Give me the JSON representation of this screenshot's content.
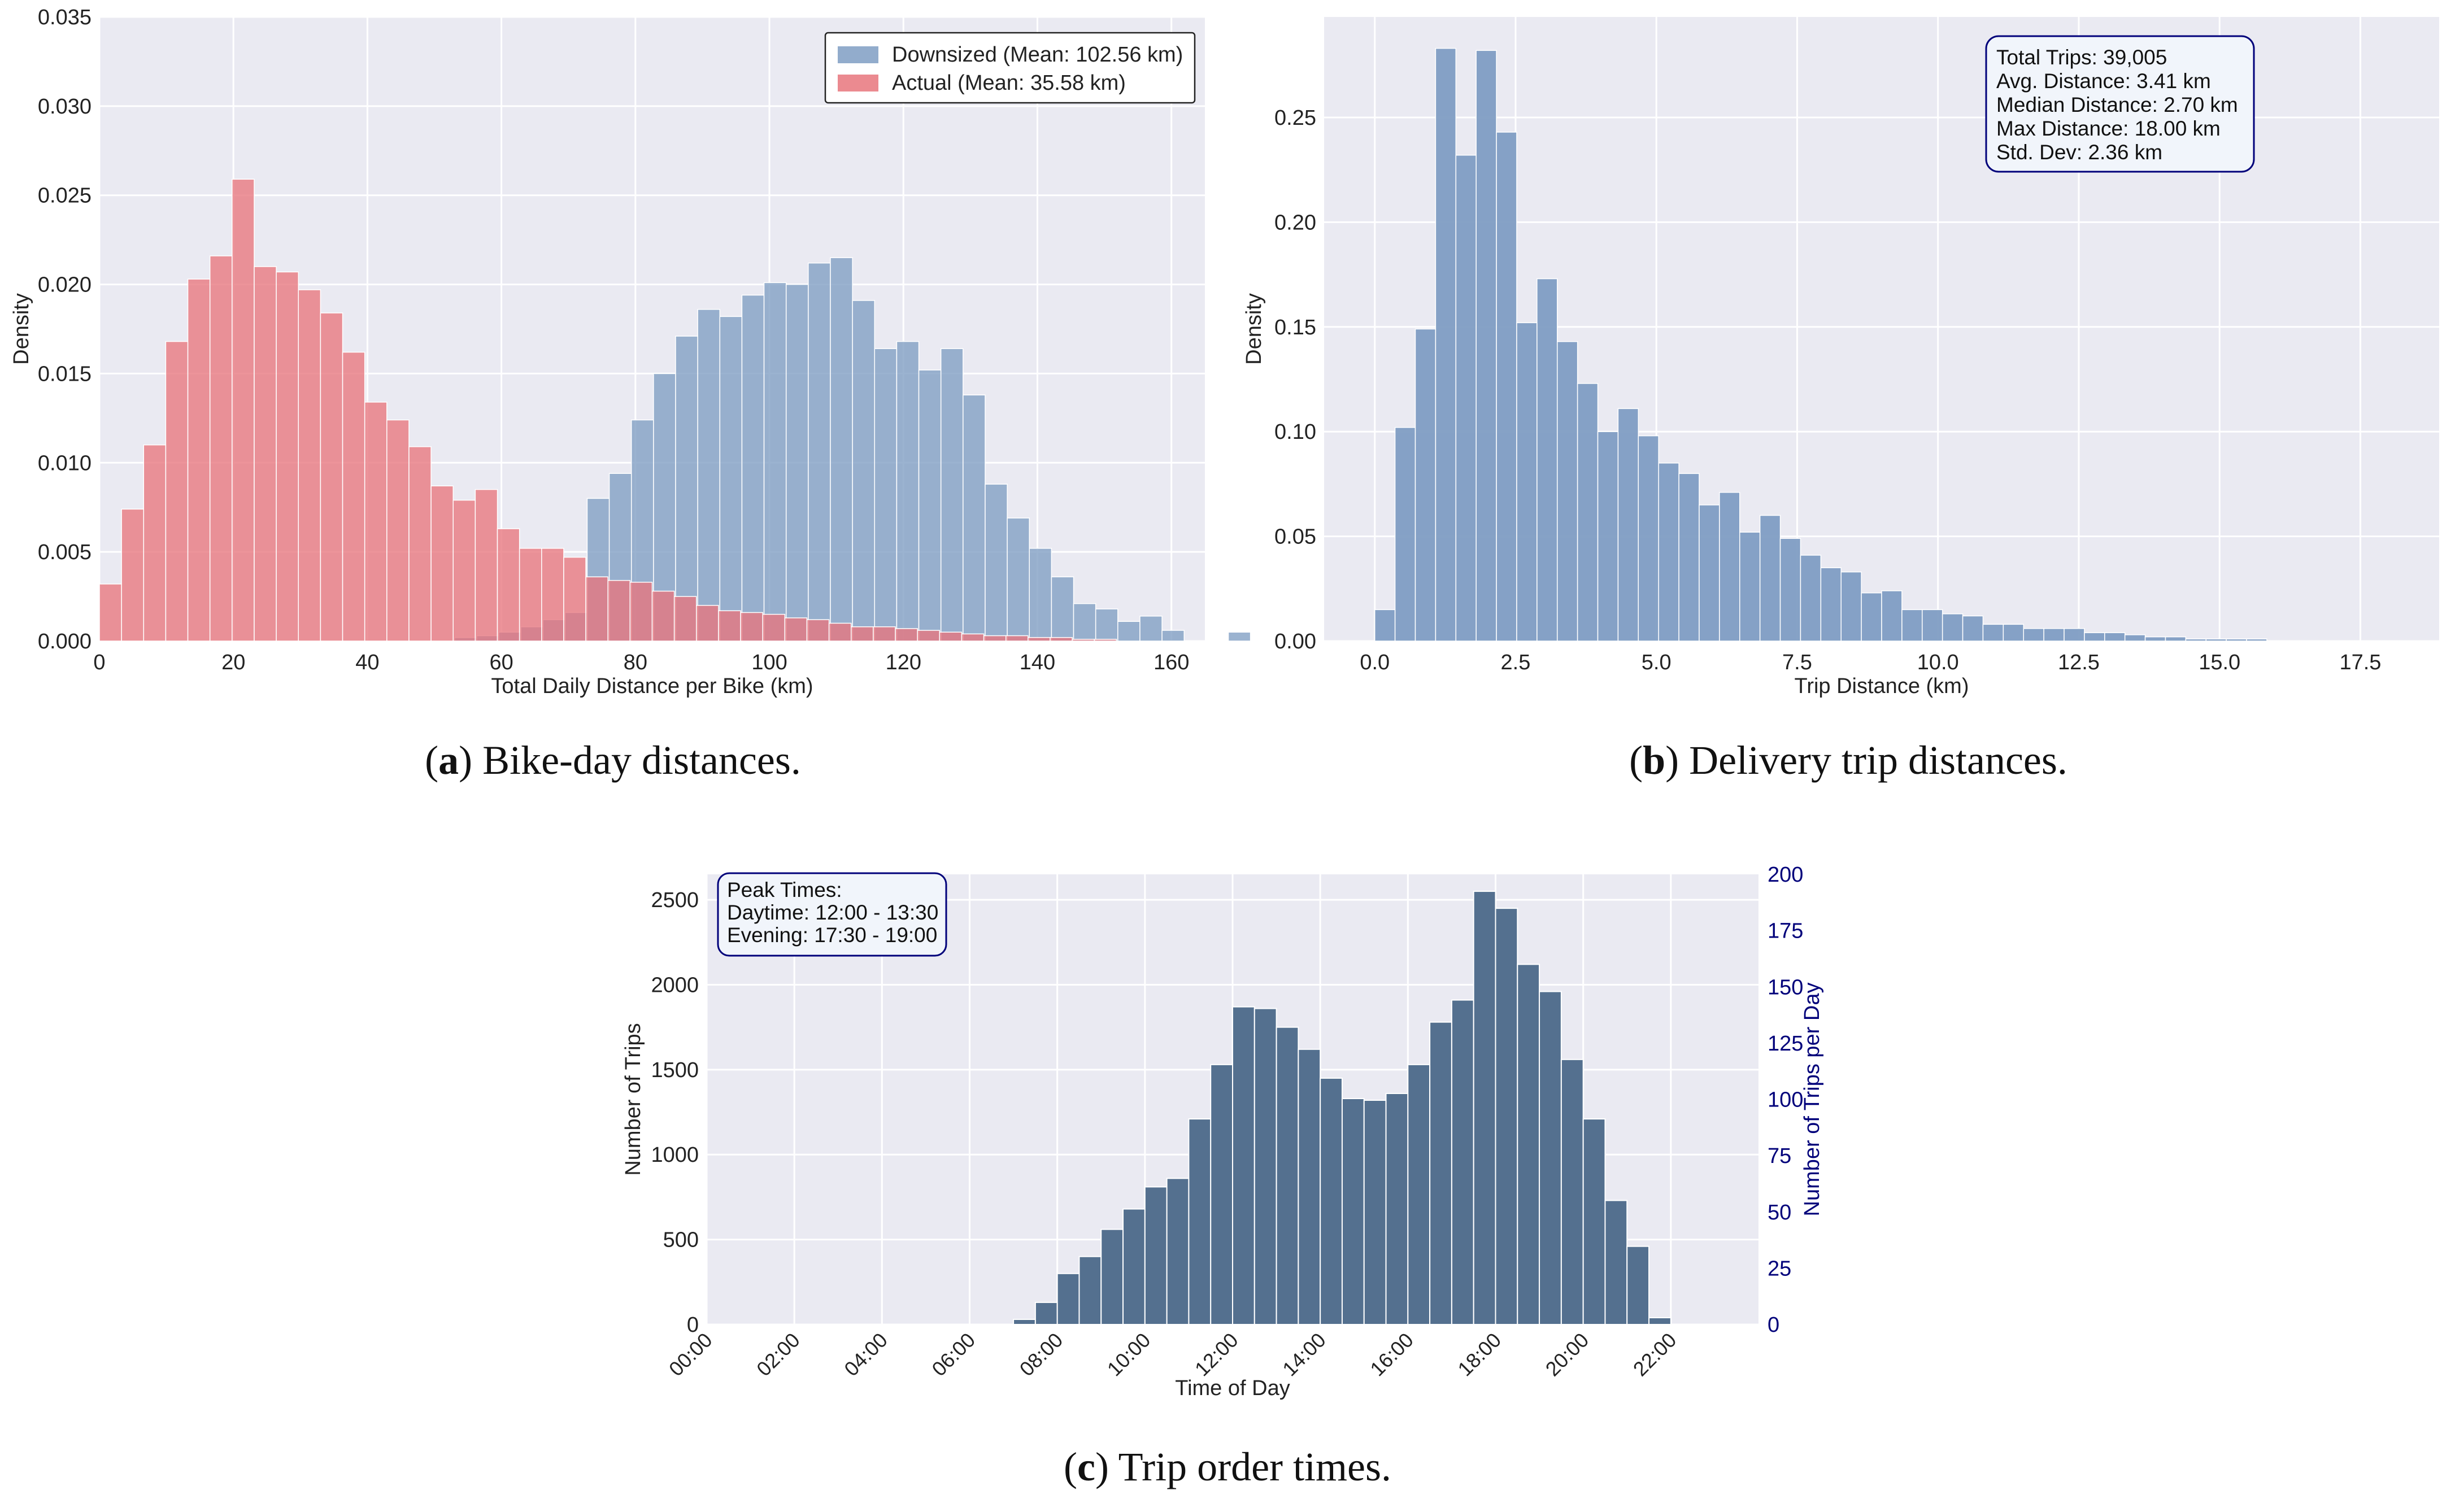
{
  "colors": {
    "plot_bg": "#eaeaf2",
    "grid": "#ffffff",
    "blue_bar": "#7f9dc3",
    "red_bar": "#e8767d",
    "dark_bar": "#54708f",
    "navy": "#00007a",
    "text": "#222222",
    "box_fill": "#f1f5fb"
  },
  "captions": {
    "a": {
      "letter": "a",
      "text": "Bike-day distances."
    },
    "b": {
      "letter": "b",
      "text": "Delivery trip distances."
    },
    "c": {
      "letter": "c",
      "text": "Trip order times."
    }
  },
  "chart_data": [
    {
      "id": "a",
      "type": "bar",
      "title": "",
      "xlabel": "Total Daily Distance per Bike (km)",
      "ylabel": "Density",
      "xlim": [
        0,
        165
      ],
      "ylim": [
        0,
        0.035
      ],
      "grid": true,
      "bin_width": 3.3,
      "xticks": [
        "0",
        "20",
        "40",
        "60",
        "80",
        "100",
        "120",
        "140",
        "160"
      ],
      "yticks": [
        "0.000",
        "0.005",
        "0.010",
        "0.015",
        "0.020",
        "0.025",
        "0.030",
        "0.035"
      ],
      "legend_position": "top-right",
      "series": [
        {
          "name": "Downsized (Mean: 102.56 km)",
          "color_key": "blue_bar",
          "bin_start": 53.0,
          "values": [
            0.0002,
            0.0003,
            0.0005,
            0.0008,
            0.0012,
            0.0016,
            0.008,
            0.0094,
            0.0124,
            0.015,
            0.0171,
            0.0186,
            0.0182,
            0.0194,
            0.0201,
            0.02,
            0.0212,
            0.0215,
            0.0191,
            0.0164,
            0.0168,
            0.0152,
            0.0164,
            0.0138,
            0.0088,
            0.0069,
            0.0052,
            0.0036,
            0.0021,
            0.0018,
            0.0011,
            0.0014,
            0.0006,
            0.0,
            0.0,
            0.0005
          ]
        },
        {
          "name": "Actual (Mean: 35.58 km)",
          "color_key": "red_bar",
          "bin_start": 0.0,
          "values": [
            0.0032,
            0.0074,
            0.011,
            0.0168,
            0.0203,
            0.0216,
            0.0259,
            0.021,
            0.0207,
            0.0197,
            0.0184,
            0.0162,
            0.0134,
            0.0124,
            0.0109,
            0.0087,
            0.0079,
            0.0085,
            0.0063,
            0.0052,
            0.0052,
            0.0047,
            0.0036,
            0.0034,
            0.0033,
            0.0028,
            0.0025,
            0.002,
            0.0017,
            0.0016,
            0.0015,
            0.0013,
            0.0012,
            0.001,
            0.0008,
            0.0008,
            0.0007,
            0.0006,
            0.0005,
            0.0004,
            0.0003,
            0.0003,
            0.0002,
            0.0002,
            0.0001,
            0.0001
          ]
        }
      ]
    },
    {
      "id": "b",
      "type": "bar",
      "title": "",
      "xlabel": "Trip Distance (km)",
      "ylabel": "Density",
      "xlim": [
        -0.9,
        18.9
      ],
      "ylim": [
        0,
        0.298
      ],
      "grid": true,
      "bin_width": 0.36,
      "xticks": [
        "0.0",
        "2.5",
        "5.0",
        "7.5",
        "10.0",
        "12.5",
        "15.0",
        "17.5"
      ],
      "yticks": [
        "0.00",
        "0.05",
        "0.10",
        "0.15",
        "0.20",
        "0.25"
      ],
      "series": [
        {
          "name": "Trips",
          "color_key": "blue_bar",
          "bin_start": 0.0,
          "values": [
            0.015,
            0.102,
            0.149,
            0.283,
            0.232,
            0.282,
            0.243,
            0.152,
            0.173,
            0.143,
            0.123,
            0.1,
            0.111,
            0.098,
            0.085,
            0.08,
            0.065,
            0.071,
            0.052,
            0.06,
            0.049,
            0.041,
            0.035,
            0.033,
            0.023,
            0.024,
            0.015,
            0.015,
            0.013,
            0.012,
            0.008,
            0.008,
            0.006,
            0.006,
            0.006,
            0.004,
            0.004,
            0.003,
            0.002,
            0.002,
            0.001,
            0.001,
            0.001,
            0.001,
            0.0,
            0.0,
            0.0,
            0.0,
            0.0,
            0.0
          ]
        }
      ],
      "stats_box": [
        "Total Trips: 39,005",
        "Avg. Distance: 3.41 km",
        "Median Distance: 2.70 km",
        "Max Distance: 18.00 km",
        "Std. Dev: 2.36 km"
      ]
    },
    {
      "id": "c",
      "type": "bar",
      "title": "",
      "xlabel": "Time of Day",
      "ylabel": "Number of Trips",
      "ylabel_right": "Number of Trips per Day",
      "xlim": [
        0,
        24
      ],
      "ylim": [
        0,
        2650
      ],
      "ylim_right": [
        0,
        200
      ],
      "grid": true,
      "bin_width": 0.5,
      "xticks": [
        "00:00",
        "02:00",
        "04:00",
        "06:00",
        "08:00",
        "10:00",
        "12:00",
        "14:00",
        "16:00",
        "18:00",
        "20:00",
        "22:00"
      ],
      "yticks": [
        "0",
        "500",
        "1000",
        "1500",
        "2000",
        "2500"
      ],
      "yticks_right": [
        "0",
        "25",
        "50",
        "75",
        "100",
        "125",
        "150",
        "175",
        "200"
      ],
      "series": [
        {
          "name": "Trips",
          "color_key": "dark_bar",
          "bin_start": 7.0,
          "values": [
            30,
            130,
            300,
            400,
            560,
            680,
            810,
            860,
            1210,
            1530,
            1870,
            1860,
            1750,
            1620,
            1450,
            1330,
            1320,
            1360,
            1530,
            1780,
            1910,
            2550,
            2450,
            2120,
            1960,
            1560,
            1210,
            730,
            460,
            40
          ]
        }
      ],
      "peak_box": [
        "Peak Times:",
        "Daytime: 12:00 - 13:30",
        "Evening: 17:30 - 19:00"
      ]
    }
  ]
}
